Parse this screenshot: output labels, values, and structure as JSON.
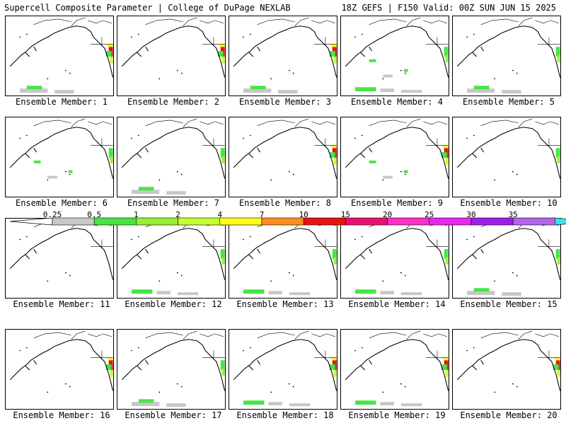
{
  "header": {
    "title_left": "Supercell Composite Parameter | College of DuPage NEXLAB",
    "title_right": "18Z GEFS | F150 Valid: 00Z SUN JUN 15 2025"
  },
  "panels": [
    {
      "label": "Ensemble Member: 1"
    },
    {
      "label": "Ensemble Member: 2"
    },
    {
      "label": "Ensemble Member: 3"
    },
    {
      "label": "Ensemble Member: 4"
    },
    {
      "label": "Ensemble Member: 5"
    },
    {
      "label": "Ensemble Member: 6"
    },
    {
      "label": "Ensemble Member: 7"
    },
    {
      "label": "Ensemble Member: 8"
    },
    {
      "label": "Ensemble Member: 9"
    },
    {
      "label": "Ensemble Member: 10"
    },
    {
      "label": "Ensemble Member: 11"
    },
    {
      "label": "Ensemble Member: 12"
    },
    {
      "label": "Ensemble Member: 13"
    },
    {
      "label": "Ensemble Member: 14"
    },
    {
      "label": "Ensemble Member: 15"
    },
    {
      "label": "Ensemble Member: 16"
    },
    {
      "label": "Ensemble Member: 17"
    },
    {
      "label": "Ensemble Member: 18"
    },
    {
      "label": "Ensemble Member: 19"
    },
    {
      "label": "Ensemble Member: 20"
    }
  ],
  "colorbar": {
    "labels": [
      "0.25",
      "0.5",
      "1",
      "2",
      "4",
      "7",
      "10",
      "15",
      "20",
      "25",
      "30",
      "35"
    ],
    "colors": [
      "#c8c8c8",
      "#46e646",
      "#96f032",
      "#c8ff32",
      "#ffff1e",
      "#ff8c1e",
      "#e61414",
      "#e6146e",
      "#ff32c8",
      "#e628f0",
      "#a01ee6",
      "#b464e6",
      "#32e6e6"
    ]
  }
}
